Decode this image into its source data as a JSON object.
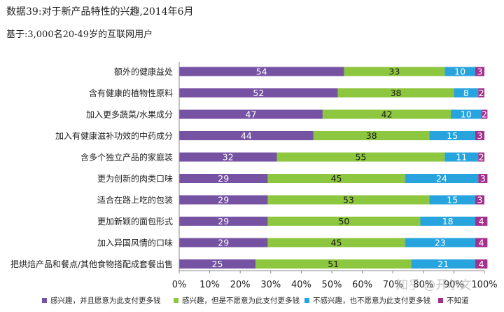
{
  "header": {
    "title": "数据39:对于新产品特性的兴趣,2014年6月",
    "subtitle": "基于:3,000名20-49岁的互联网用户"
  },
  "watermark": "知乎 @开尔文",
  "colors": {
    "series": [
      "#7652a3",
      "#8dc63f",
      "#27a4dd",
      "#a3308d"
    ],
    "axis": "#888888"
  },
  "chart_data": {
    "type": "bar",
    "orientation": "horizontal",
    "stacked": true,
    "title": "",
    "xlabel": "",
    "ylabel": "",
    "xlim": [
      0,
      100
    ],
    "x_tick_labels": [
      "0%",
      "10%",
      "20%",
      "30%",
      "40%",
      "50%",
      "60%",
      "70%",
      "80%",
      "90%",
      "100%"
    ],
    "legend_position": "bottom",
    "grid": false,
    "categories": [
      "额外的健康益处",
      "含有健康的植物性原料",
      "加入更多蔬菜/水果成分",
      "加入有健康滋补功效的中药成分",
      "含多个独立产品的家庭装",
      "更为创新的肉类口味",
      "适合在路上吃的包装",
      "更加新颖的面包形式",
      "加入异国风情的口味",
      "把烘焙产品和餐点/其他食物搭配成套餐出售"
    ],
    "series": [
      {
        "name": "感兴趣，并且愿意为此支付更多钱",
        "values": [
          54,
          52,
          47,
          44,
          32,
          29,
          29,
          29,
          29,
          25
        ]
      },
      {
        "name": "感兴趣，但是不愿意为此支付更多钱",
        "values": [
          33,
          38,
          42,
          38,
          55,
          45,
          53,
          50,
          45,
          51
        ]
      },
      {
        "name": "不感兴趣，也不愿意为此支付更多钱",
        "values": [
          10,
          8,
          10,
          15,
          11,
          24,
          15,
          18,
          23,
          21
        ]
      },
      {
        "name": "不知道",
        "values": [
          3,
          2,
          2,
          3,
          2,
          3,
          3,
          4,
          4,
          4
        ]
      }
    ]
  }
}
